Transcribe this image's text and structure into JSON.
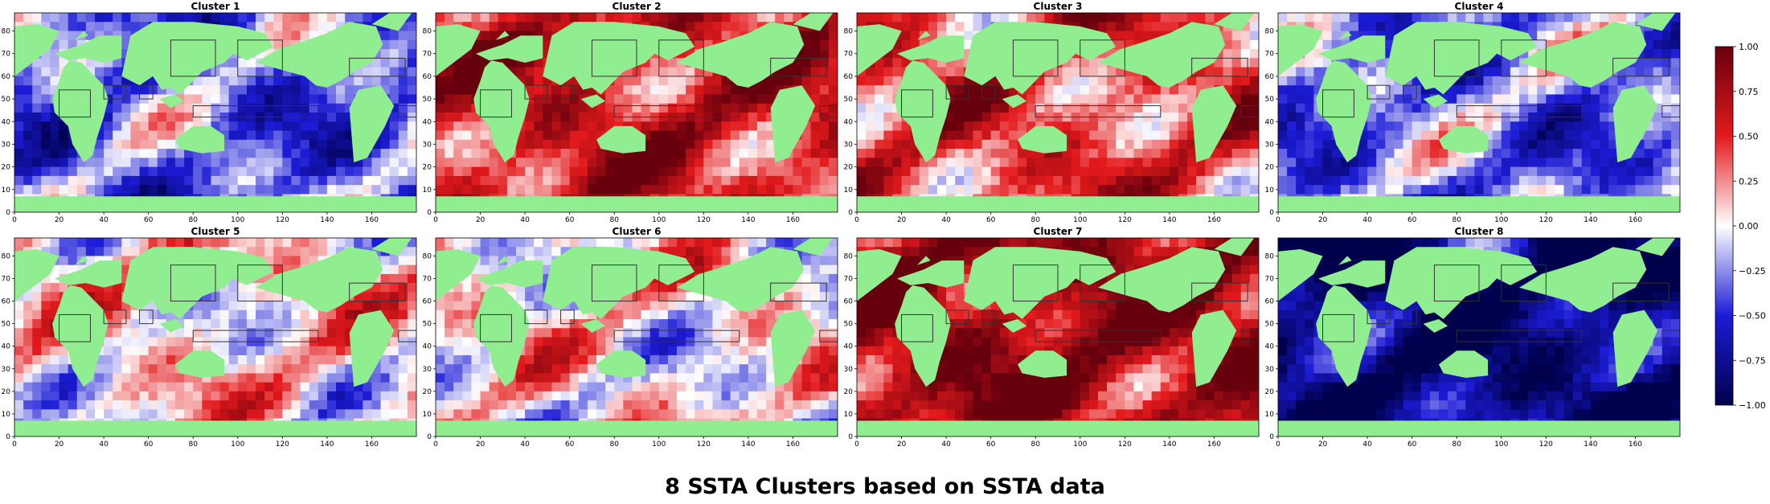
{
  "figure": {
    "title": "8 SSTA Clusters based on SSTA data"
  },
  "chart_data": {
    "type": "heatmap",
    "title": "8 SSTA Clusters based on SSTA data",
    "panels": [
      {
        "title": "Cluster 1",
        "dominant_anomaly": -0.35
      },
      {
        "title": "Cluster 2",
        "dominant_anomaly": 0.6
      },
      {
        "title": "Cluster 3",
        "dominant_anomaly": 0.45
      },
      {
        "title": "Cluster 4",
        "dominant_anomaly": -0.3
      },
      {
        "title": "Cluster 5",
        "dominant_anomaly": 0.1
      },
      {
        "title": "Cluster 6",
        "dominant_anomaly": 0.05
      },
      {
        "title": "Cluster 7",
        "dominant_anomaly": 0.8
      },
      {
        "title": "Cluster 8",
        "dominant_anomaly": -0.85
      }
    ],
    "x_ticks": [
      "0",
      "20",
      "40",
      "60",
      "80",
      "100",
      "120",
      "140",
      "160"
    ],
    "y_ticks": [
      "0",
      "10",
      "20",
      "30",
      "40",
      "50",
      "60",
      "70",
      "80"
    ],
    "xlim": [
      0,
      180
    ],
    "ylim": [
      0,
      88
    ],
    "colorbar": {
      "range": [
        -1.0,
        1.0
      ],
      "ticks": [
        "1.00",
        "0.75",
        "0.50",
        "0.25",
        "0.00",
        "−0.25",
        "−0.50",
        "−0.75",
        "−1.00"
      ],
      "colormap": [
        "#67000d",
        "#e31a1c",
        "#ffffff",
        "#1c1cd6",
        "#00004d"
      ]
    },
    "land_color": "#90ee90"
  }
}
